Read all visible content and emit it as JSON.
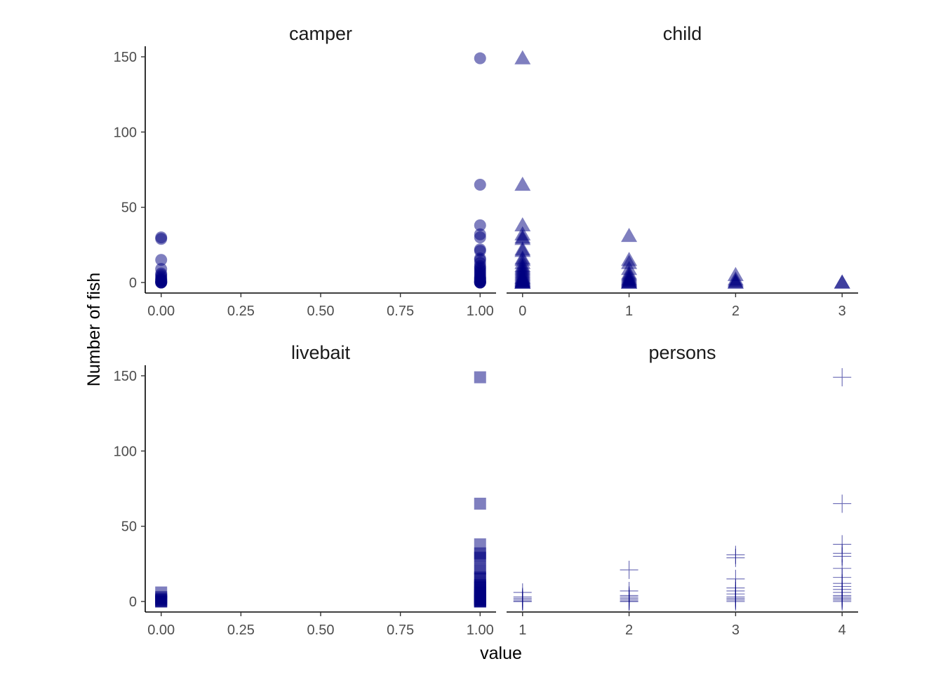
{
  "chart_data": {
    "type": "scatter",
    "xlabel": "value",
    "ylabel": "Number of fish",
    "ylim": [
      -7,
      157
    ],
    "y_ticks": [
      "0",
      "50",
      "100",
      "150"
    ],
    "grid": false,
    "color": "#000080",
    "panels": [
      {
        "title": "camper",
        "shape": "circle",
        "xlim": [
          -0.05,
          1.05
        ],
        "x_ticks": [
          "0.00",
          "0.25",
          "0.50",
          "0.75",
          "1.00"
        ],
        "points": [
          [
            0,
            0
          ],
          [
            0,
            0
          ],
          [
            0,
            0
          ],
          [
            0,
            0
          ],
          [
            0,
            1
          ],
          [
            0,
            1
          ],
          [
            0,
            1
          ],
          [
            0,
            2
          ],
          [
            0,
            2
          ],
          [
            0,
            3
          ],
          [
            0,
            4
          ],
          [
            0,
            5
          ],
          [
            0,
            6
          ],
          [
            0,
            9
          ],
          [
            0,
            15
          ],
          [
            0,
            29
          ],
          [
            0,
            30
          ],
          [
            1,
            0
          ],
          [
            1,
            0
          ],
          [
            1,
            0
          ],
          [
            1,
            0
          ],
          [
            1,
            1
          ],
          [
            1,
            1
          ],
          [
            1,
            1
          ],
          [
            1,
            2
          ],
          [
            1,
            2
          ],
          [
            1,
            3
          ],
          [
            1,
            3
          ],
          [
            1,
            4
          ],
          [
            1,
            5
          ],
          [
            1,
            6
          ],
          [
            1,
            7
          ],
          [
            1,
            8
          ],
          [
            1,
            9
          ],
          [
            1,
            10
          ],
          [
            1,
            11
          ],
          [
            1,
            13
          ],
          [
            1,
            15
          ],
          [
            1,
            16
          ],
          [
            1,
            21
          ],
          [
            1,
            22
          ],
          [
            1,
            30
          ],
          [
            1,
            32
          ],
          [
            1,
            38
          ],
          [
            1,
            65
          ],
          [
            1,
            149
          ]
        ]
      },
      {
        "title": "child",
        "shape": "triangle",
        "xlim": [
          -0.15,
          3.15
        ],
        "x_ticks": [
          "0",
          "1",
          "2",
          "3"
        ],
        "points": [
          [
            0,
            0
          ],
          [
            0,
            0
          ],
          [
            0,
            0
          ],
          [
            0,
            0
          ],
          [
            0,
            1
          ],
          [
            0,
            1
          ],
          [
            0,
            1
          ],
          [
            0,
            2
          ],
          [
            0,
            2
          ],
          [
            0,
            3
          ],
          [
            0,
            3
          ],
          [
            0,
            4
          ],
          [
            0,
            5
          ],
          [
            0,
            6
          ],
          [
            0,
            7
          ],
          [
            0,
            8
          ],
          [
            0,
            9
          ],
          [
            0,
            10
          ],
          [
            0,
            11
          ],
          [
            0,
            13
          ],
          [
            0,
            15
          ],
          [
            0,
            16
          ],
          [
            0,
            21
          ],
          [
            0,
            22
          ],
          [
            0,
            29
          ],
          [
            0,
            30
          ],
          [
            0,
            32
          ],
          [
            0,
            38
          ],
          [
            0,
            65
          ],
          [
            0,
            149
          ],
          [
            1,
            0
          ],
          [
            1,
            0
          ],
          [
            1,
            0
          ],
          [
            1,
            1
          ],
          [
            1,
            1
          ],
          [
            1,
            2
          ],
          [
            1,
            2
          ],
          [
            1,
            3
          ],
          [
            1,
            4
          ],
          [
            1,
            5
          ],
          [
            1,
            6
          ],
          [
            1,
            9
          ],
          [
            1,
            13
          ],
          [
            1,
            15
          ],
          [
            1,
            31
          ],
          [
            2,
            0
          ],
          [
            2,
            0
          ],
          [
            2,
            1
          ],
          [
            2,
            2
          ],
          [
            2,
            5
          ],
          [
            3,
            0
          ],
          [
            3,
            0
          ]
        ]
      },
      {
        "title": "livebait",
        "shape": "square",
        "xlim": [
          -0.05,
          1.05
        ],
        "x_ticks": [
          "0.00",
          "0.25",
          "0.50",
          "0.75",
          "1.00"
        ],
        "points": [
          [
            0,
            0
          ],
          [
            0,
            0
          ],
          [
            0,
            0
          ],
          [
            0,
            1
          ],
          [
            0,
            1
          ],
          [
            0,
            2
          ],
          [
            0,
            3
          ],
          [
            0,
            6
          ],
          [
            1,
            0
          ],
          [
            1,
            0
          ],
          [
            1,
            0
          ],
          [
            1,
            0
          ],
          [
            1,
            1
          ],
          [
            1,
            1
          ],
          [
            1,
            1
          ],
          [
            1,
            2
          ],
          [
            1,
            2
          ],
          [
            1,
            3
          ],
          [
            1,
            3
          ],
          [
            1,
            4
          ],
          [
            1,
            5
          ],
          [
            1,
            6
          ],
          [
            1,
            7
          ],
          [
            1,
            8
          ],
          [
            1,
            9
          ],
          [
            1,
            10
          ],
          [
            1,
            11
          ],
          [
            1,
            13
          ],
          [
            1,
            15
          ],
          [
            1,
            16
          ],
          [
            1,
            21
          ],
          [
            1,
            22
          ],
          [
            1,
            29
          ],
          [
            1,
            30
          ],
          [
            1,
            32
          ],
          [
            1,
            38
          ],
          [
            1,
            65
          ],
          [
            1,
            149
          ]
        ]
      },
      {
        "title": "persons",
        "shape": "plus",
        "xlim": [
          0.85,
          4.15
        ],
        "x_ticks": [
          "1",
          "2",
          "3",
          "4"
        ],
        "x_tick_values": [
          1,
          2,
          3,
          4
        ],
        "points": [
          [
            1,
            0
          ],
          [
            1,
            0
          ],
          [
            1,
            1
          ],
          [
            1,
            2
          ],
          [
            1,
            3
          ],
          [
            1,
            6
          ],
          [
            2,
            0
          ],
          [
            2,
            0
          ],
          [
            2,
            1
          ],
          [
            2,
            2
          ],
          [
            2,
            3
          ],
          [
            2,
            4
          ],
          [
            2,
            7
          ],
          [
            2,
            21
          ],
          [
            3,
            0
          ],
          [
            3,
            1
          ],
          [
            3,
            2
          ],
          [
            3,
            3
          ],
          [
            3,
            5
          ],
          [
            3,
            7
          ],
          [
            3,
            9
          ],
          [
            3,
            15
          ],
          [
            3,
            29
          ],
          [
            3,
            31
          ],
          [
            4,
            0
          ],
          [
            4,
            1
          ],
          [
            4,
            2
          ],
          [
            4,
            3
          ],
          [
            4,
            4
          ],
          [
            4,
            6
          ],
          [
            4,
            8
          ],
          [
            4,
            10
          ],
          [
            4,
            12
          ],
          [
            4,
            16
          ],
          [
            4,
            22
          ],
          [
            4,
            30
          ],
          [
            4,
            32
          ],
          [
            4,
            38
          ],
          [
            4,
            65
          ],
          [
            4,
            149
          ]
        ]
      }
    ]
  }
}
